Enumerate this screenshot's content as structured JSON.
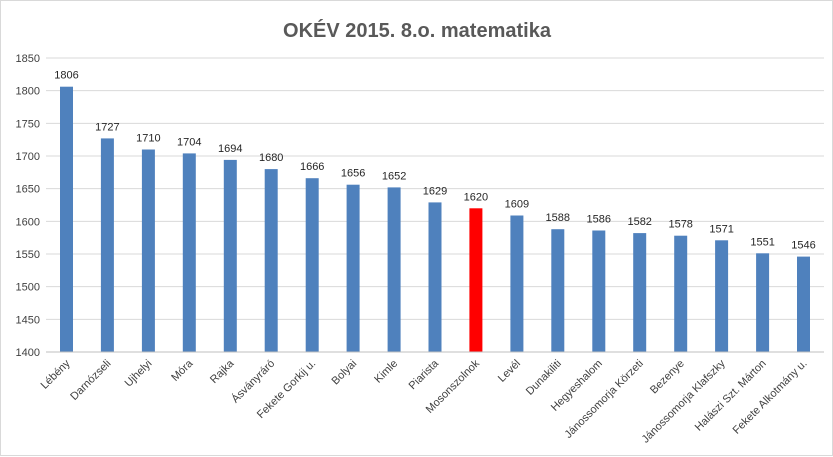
{
  "chart_data": {
    "type": "bar",
    "title": "OKÉV 2015. 8.o. matematika",
    "xlabel": "",
    "ylabel": "",
    "ylim": [
      1400,
      1850
    ],
    "yticks": [
      1400,
      1450,
      1500,
      1550,
      1600,
      1650,
      1700,
      1750,
      1800,
      1850
    ],
    "grid": true,
    "legend": "none",
    "categories": [
      "Lébény",
      "Darnózseli",
      "Ujhelyi",
      "Móra",
      "Rajka",
      "Ásványráró",
      "Fekete Gorkij u.",
      "Bolyai",
      "Kimle",
      "Piarista",
      "Mosonszolnok",
      "Levél",
      "Dunakiliti",
      "Hegyeshalom",
      "Jánossomorja Körzeti",
      "Bezenye",
      "Jánossomorja Klafszky",
      "Halászi Szt. Márton",
      "Fekete Alkotmány u."
    ],
    "values": [
      1806,
      1727,
      1710,
      1704,
      1694,
      1680,
      1666,
      1656,
      1652,
      1629,
      1620,
      1609,
      1588,
      1586,
      1582,
      1578,
      1571,
      1551,
      1546
    ],
    "colors": {
      "default_bar": "#4f81bd",
      "highlight_bar": "#ff0000"
    },
    "highlight_index": 10
  }
}
